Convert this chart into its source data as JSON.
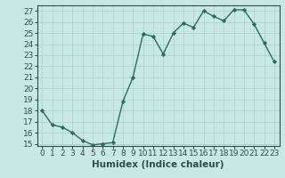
{
  "x": [
    0,
    1,
    2,
    3,
    4,
    5,
    6,
    7,
    8,
    9,
    10,
    11,
    12,
    13,
    14,
    15,
    16,
    17,
    18,
    19,
    20,
    21,
    22,
    23
  ],
  "y": [
    18,
    16.7,
    16.5,
    16.0,
    15.3,
    14.9,
    15.0,
    15.1,
    18.8,
    21.0,
    24.9,
    24.7,
    23.1,
    25.0,
    25.9,
    25.5,
    27.0,
    26.5,
    26.1,
    27.1,
    27.1,
    25.8,
    24.1,
    22.4
  ],
  "line_color": "#2e6b5e",
  "marker": "D",
  "markersize": 2.2,
  "linewidth": 1.0,
  "xlabel": "Humidex (Indice chaleur)",
  "xlim": [
    -0.5,
    23.5
  ],
  "ylim": [
    14.8,
    27.5
  ],
  "yticks": [
    15,
    16,
    17,
    18,
    19,
    20,
    21,
    22,
    23,
    24,
    25,
    26,
    27
  ],
  "xticks": [
    0,
    1,
    2,
    3,
    4,
    5,
    6,
    7,
    8,
    9,
    10,
    11,
    12,
    13,
    14,
    15,
    16,
    17,
    18,
    19,
    20,
    21,
    22,
    23
  ],
  "xtick_labels": [
    "0",
    "1",
    "2",
    "3",
    "4",
    "5",
    "6",
    "7",
    "8",
    "9",
    "10",
    "11",
    "12",
    "13",
    "14",
    "15",
    "16",
    "17",
    "18",
    "19",
    "20",
    "21",
    "22",
    "23"
  ],
  "bg_color": "#c8e8e4",
  "grid_color": "#b0d4cf",
  "tick_color": "#2e4e4e",
  "xlabel_fontsize": 7.5,
  "tick_fontsize": 6.5
}
